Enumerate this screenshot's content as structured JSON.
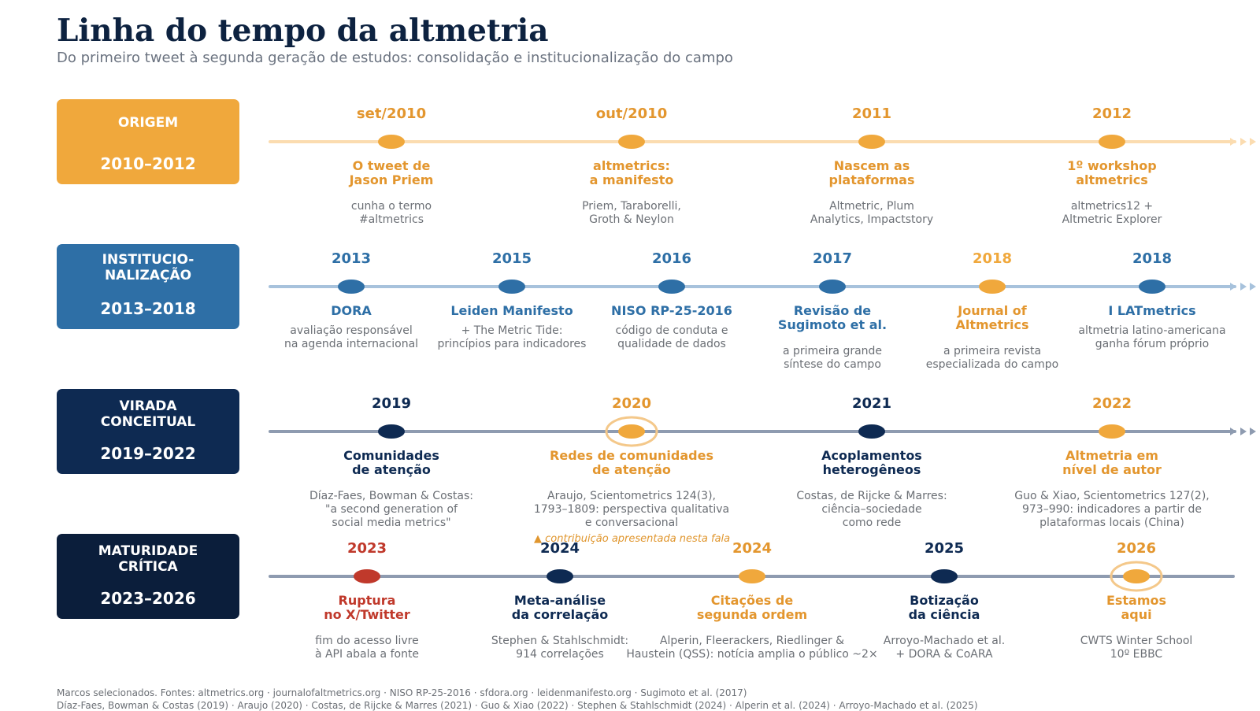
{
  "title": "Linha do tempo da altmetria",
  "subtitle": "Do primeiro tweet à segunda geração de estudos: consolidação e institucionalização do campo",
  "colors": {
    "orange": "#f0a83c",
    "blue": "#2e6fa6",
    "navy": "#0e2a52",
    "darknavy": "#0b1e3b",
    "red": "#c0392b",
    "text_orange": "#e3962e"
  },
  "phases": [
    {
      "name": "ORIGEM",
      "years": "2010–2012"
    },
    {
      "name": "INSTITUCIO-\nNALIZAÇÃO",
      "years": "2013–2018"
    },
    {
      "name": "VIRADA\nCONCEITUAL",
      "years": "2019–2022"
    },
    {
      "name": "MATURIDADE\nCRÍTICA",
      "years": "2023–2026"
    }
  ],
  "events": [
    [
      {
        "year": "set/2010",
        "title": "O tweet de\nJason Priem",
        "desc": "cunha o termo\n#altmetrics"
      },
      {
        "year": "out/2010",
        "title": "altmetrics:\na manifesto",
        "desc": "Priem, Taraborelli,\nGroth & Neylon"
      },
      {
        "year": "2011",
        "title": "Nascem as\nplataformas",
        "desc": "Altmetric, Plum\nAnalytics, Impactstory"
      },
      {
        "year": "2012",
        "title": "1º workshop\naltmetrics",
        "desc": "altmetrics12 +\nAltmetric Explorer"
      }
    ],
    [
      {
        "year": "2013",
        "title": "DORA",
        "desc": "avaliação responsável\nna agenda internacional"
      },
      {
        "year": "2015",
        "title": "Leiden Manifesto",
        "desc": "+ The Metric Tide:\nprincípios para indicadores"
      },
      {
        "year": "2016",
        "title": "NISO RP-25-2016",
        "desc": "código de conduta e\nqualidade de dados"
      },
      {
        "year": "2017",
        "title": "Revisão de\nSugimoto et al.",
        "desc": "a primeira grande\nsíntese do campo"
      },
      {
        "year": "2018",
        "title": "Journal of\nAltmetrics",
        "desc": "a primeira revista\nespecializada do campo"
      },
      {
        "year": "2018",
        "title": "I LATmetrics",
        "desc": "altmetria latino-americana\nganha fórum próprio"
      }
    ],
    [
      {
        "year": "2019",
        "title": "Comunidades\nde atenção",
        "desc": "Díaz-Faes, Bowman & Costas:\n\"a second generation of\nsocial media metrics\""
      },
      {
        "year": "2020",
        "title": "Redes de comunidades\nde atenção",
        "desc": "Araujo, Scientometrics 124(3),\n1793–1809: perspectiva qualitativa\ne conversacional"
      },
      {
        "year": "2021",
        "title": "Acoplamentos\nheterogêneos",
        "desc": "Costas, de Rijcke & Marres:\nciência–sociedade\ncomo rede"
      },
      {
        "year": "2022",
        "title": "Altmetria em\nnível de autor",
        "desc": "Guo & Xiao, Scientometrics 127(2),\n973–990: indicadores a partir de\nplataformas locais (China)"
      }
    ],
    [
      {
        "year": "2023",
        "title": "Ruptura\nno X/Twitter",
        "desc": "fim do acesso livre\nà API abala a fonte"
      },
      {
        "year": "2024",
        "title": "Meta-análise\nda correlação",
        "desc": "Stephen & Stahlschmidt:\n914 correlações"
      },
      {
        "year": "2024",
        "title": "Citações de\nsegunda ordem",
        "desc": "Alperin, Fleerackers, Riedlinger &\nHaustein (QSS): notícia amplia o público ~2×"
      },
      {
        "year": "2025",
        "title": "Botização\nda ciência",
        "desc": "Arroyo-Machado et al.\n+ DORA & CoARA"
      },
      {
        "year": "2026",
        "title": "Estamos\naqui",
        "desc": "CWTS Winter School\n10º EBBC"
      }
    ]
  ],
  "note": "▲ contribuição apresentada nesta fala",
  "footer": [
    "Marcos selecionados. Fontes: altmetrics.org · journalofaltmetrics.org · NISO RP-25-2016 · sfdora.org · leidenmanifesto.org · Sugimoto et al. (2017)",
    "Díaz-Faes, Bowman & Costas (2019) · Araujo (2020) · Costas, de Rijcke & Marres (2021) · Guo & Xiao (2022) · Stephen & Stahlschmidt (2024) · Alperin et al. (2024) · Arroyo-Machado et al. (2025)"
  ]
}
